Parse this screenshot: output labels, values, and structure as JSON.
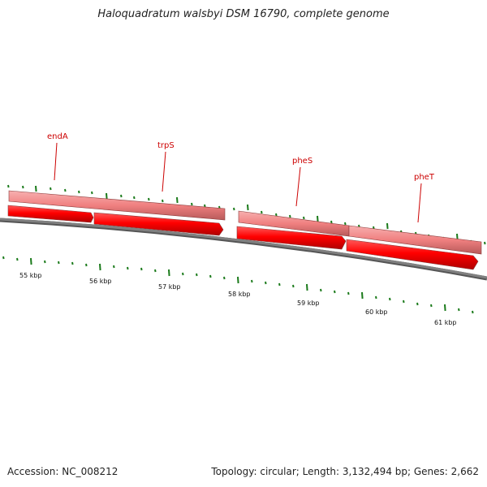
{
  "title": "Haloquadratum walsbyi DSM 16790, complete genome",
  "footer": {
    "accession": "Accession: NC_008212",
    "summary": "Topology: circular; Length: 3,132,494 bp; Genes: 2,662"
  },
  "colors": {
    "gene_feature": "#ff0000",
    "cds_feature": "#f08080",
    "label": "#cc0000",
    "minor_tick": "#1a7a1a",
    "backbone": "#808080"
  },
  "genes": [
    {
      "label": "endA"
    },
    {
      "label": "trpS"
    },
    {
      "label": "pheS"
    },
    {
      "label": "pheT"
    }
  ],
  "scale": {
    "labels": [
      "55 kbp",
      "56 kbp",
      "57 kbp",
      "58 kbp",
      "59 kbp",
      "60 kbp",
      "61 kbp"
    ]
  }
}
